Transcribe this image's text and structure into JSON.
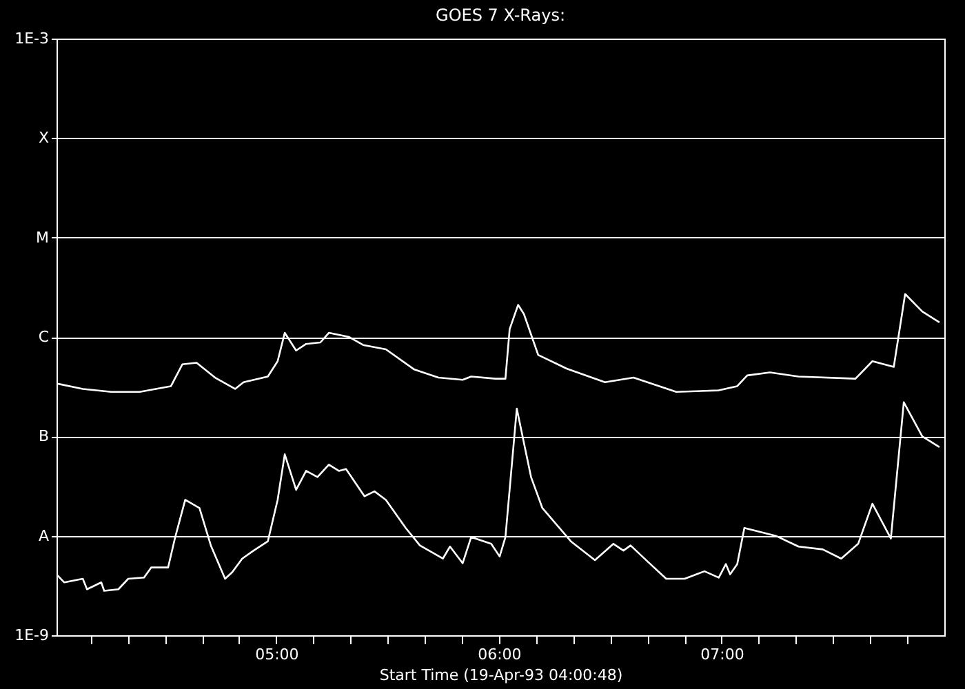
{
  "chart_data": {
    "type": "line",
    "title": "GOES 7 X-Rays:",
    "xlabel": "Start Time (19-Apr-93 04:00:48)",
    "xlim": [
      4.013,
      8.0
    ],
    "xticks": [
      {
        "value": 4.1667,
        "label": null
      },
      {
        "value": 4.3333,
        "label": null
      },
      {
        "value": 4.5,
        "label": null
      },
      {
        "value": 4.6667,
        "label": null
      },
      {
        "value": 4.8333,
        "label": null
      },
      {
        "value": 5,
        "label": "05:00"
      },
      {
        "value": 5.1667,
        "label": null
      },
      {
        "value": 5.3333,
        "label": null
      },
      {
        "value": 5.5,
        "label": null
      },
      {
        "value": 5.6667,
        "label": null
      },
      {
        "value": 5.8333,
        "label": null
      },
      {
        "value": 6,
        "label": "06:00"
      },
      {
        "value": 6.1667,
        "label": null
      },
      {
        "value": 6.3333,
        "label": null
      },
      {
        "value": 6.5,
        "label": null
      },
      {
        "value": 6.6667,
        "label": null
      },
      {
        "value": 6.8333,
        "label": null
      },
      {
        "value": 7,
        "label": "07:00"
      },
      {
        "value": 7.1667,
        "label": null
      },
      {
        "value": 7.3333,
        "label": null
      },
      {
        "value": 7.5,
        "label": null
      },
      {
        "value": 7.6667,
        "label": null
      },
      {
        "value": 7.8333,
        "label": null
      }
    ],
    "ylim": [
      1e-09,
      0.001
    ],
    "log": "y",
    "yticks": [
      {
        "value": 1e-09,
        "label": "1E-9"
      },
      {
        "value": 1e-08,
        "label": "A"
      },
      {
        "value": 1e-07,
        "label": "B"
      },
      {
        "value": 1e-06,
        "label": "C"
      },
      {
        "value": 1e-05,
        "label": "M"
      },
      {
        "value": 0.0001,
        "label": "X"
      },
      {
        "value": 0.001,
        "label": "1E-3"
      }
    ],
    "grid": "y",
    "line_style": "solid",
    "series": [
      {
        "color": "#ffffff",
        "x": [
          4.013,
          4.131,
          4.259,
          4.387,
          4.527,
          4.578,
          4.642,
          4.725,
          4.815,
          4.853,
          4.962,
          5.006,
          5.038,
          5.089,
          5.134,
          5.198,
          5.236,
          5.326,
          5.39,
          5.492,
          5.62,
          5.728,
          5.837,
          5.875,
          5.984,
          6.029,
          6.048,
          6.086,
          6.112,
          6.176,
          6.304,
          6.476,
          6.604,
          6.796,
          6.987,
          7.07,
          7.115,
          7.217,
          7.345,
          7.601,
          7.677,
          7.773,
          7.824,
          7.901,
          7.978
        ],
        "values": [
          3.4e-07,
          3e-07,
          2.8e-07,
          2.8e-07,
          3.2e-07,
          5.3e-07,
          5.5e-07,
          3.9e-07,
          3e-07,
          3.5e-07,
          4e-07,
          5.7e-07,
          1.1e-06,
          7.3e-07,
          8.5e-07,
          8.8e-07,
          1.1e-06,
          1e-06,
          8.3e-07,
          7.5e-07,
          4.7e-07,
          3.9e-07,
          3.7e-07,
          4e-07,
          3.8e-07,
          3.8e-07,
          1.2e-06,
          2.1e-06,
          1.7e-06,
          6.6e-07,
          4.8e-07,
          3.5e-07,
          3.9e-07,
          2.8e-07,
          2.9e-07,
          3.2e-07,
          4.1e-07,
          4.4e-07,
          4e-07,
          3.8e-07,
          5.7e-07,
          5e-07,
          2.7e-06,
          1.8e-06,
          1.4e-06
        ]
      },
      {
        "color": "#ffffff",
        "x": [
          4.013,
          4.048,
          4.131,
          4.15,
          4.214,
          4.227,
          4.291,
          4.335,
          4.406,
          4.438,
          4.514,
          4.546,
          4.591,
          4.655,
          4.706,
          4.77,
          4.802,
          4.847,
          4.898,
          4.962,
          5.006,
          5.038,
          5.089,
          5.134,
          5.185,
          5.236,
          5.281,
          5.313,
          5.396,
          5.441,
          5.492,
          5.581,
          5.645,
          5.748,
          5.78,
          5.837,
          5.875,
          5.965,
          6.003,
          6.029,
          6.08,
          6.144,
          6.195,
          6.323,
          6.431,
          6.514,
          6.559,
          6.591,
          6.668,
          6.751,
          6.834,
          6.923,
          6.987,
          7.019,
          7.038,
          7.07,
          7.102,
          7.243,
          7.345,
          7.454,
          7.537,
          7.613,
          7.677,
          7.76,
          7.818,
          7.901,
          7.978
        ],
        "values": [
          4.1e-09,
          3.4e-09,
          3.7e-09,
          2.9e-09,
          3.4e-09,
          2.8e-09,
          2.9e-09,
          3.7e-09,
          3.8e-09,
          4.8e-09,
          4.8e-09,
          9.7e-09,
          2.3e-08,
          1.9e-08,
          8e-09,
          3.7e-09,
          4.3e-09,
          5.9e-09,
          7.1e-09,
          8.8e-09,
          2.3e-08,
          6.6e-08,
          2.9e-08,
          4.5e-08,
          3.9e-08,
          5.2e-08,
          4.5e-08,
          4.7e-08,
          2.5e-08,
          2.8e-08,
          2.3e-08,
          1.2e-08,
          8e-09,
          5.9e-09,
          7.8e-09,
          5.3e-09,
          9.7e-09,
          8.3e-09,
          6.2e-09,
          9.7e-09,
          1.9e-07,
          3.9e-08,
          1.9e-08,
          8.8e-09,
          5.7e-09,
          8.3e-09,
          7.1e-09,
          8e-09,
          5.5e-09,
          3.7e-09,
          3.7e-09,
          4.4e-09,
          3.8e-09,
          5.2e-09,
          4.1e-09,
          5.2e-09,
          1.2e-08,
          1e-08,
          7.8e-09,
          7.3e-09,
          5.9e-09,
          8.3e-09,
          2.1e-08,
          9.4e-09,
          2.2e-07,
          1e-07,
          7.8e-08
        ]
      }
    ]
  }
}
